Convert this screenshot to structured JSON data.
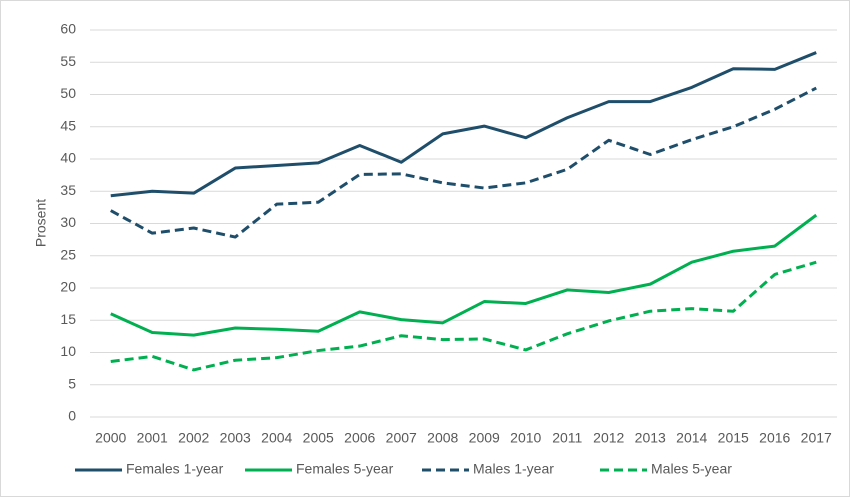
{
  "chart_data": {
    "type": "line",
    "y_label": "Prosent",
    "categories": [
      "2000",
      "2001",
      "2002",
      "2003",
      "2004",
      "2005",
      "2006",
      "2007",
      "2008",
      "2009",
      "2010",
      "2011",
      "2012",
      "2013",
      "2014",
      "2015",
      "2016",
      "2017"
    ],
    "series": [
      {
        "name": "Females 1-year",
        "color": "#1f4e6b",
        "line_style": "solid",
        "values": [
          34.3,
          35,
          34.7,
          38.6,
          39,
          39.4,
          42.1,
          39.5,
          43.9,
          45.1,
          43.3,
          46.4,
          48.9,
          48.9,
          51.1,
          54,
          53.9,
          56.5
        ]
      },
      {
        "name": "Females 5-year",
        "color": "#00b050",
        "line_style": "solid",
        "values": [
          16,
          13.1,
          12.7,
          13.8,
          13.6,
          13.3,
          16.3,
          15.1,
          14.6,
          17.9,
          17.6,
          19.7,
          19.3,
          20.6,
          24,
          25.7,
          26.5,
          31.3
        ]
      },
      {
        "name": "Males 1-year",
        "color": "#1f4e6b",
        "line_style": "dashed",
        "values": [
          32,
          28.5,
          29.3,
          27.9,
          33,
          33.3,
          37.6,
          37.7,
          36.3,
          35.5,
          36.3,
          38.4,
          42.9,
          40.7,
          43,
          45,
          47.7,
          51
        ]
      },
      {
        "name": "Males 5-year",
        "color": "#00b050",
        "line_style": "dashed",
        "values": [
          8.6,
          9.4,
          7.3,
          8.8,
          9.2,
          10.3,
          11,
          12.6,
          12,
          12.1,
          10.4,
          12.9,
          14.9,
          16.4,
          16.8,
          16.4,
          22.1,
          24
        ]
      }
    ],
    "ylim": [
      0,
      60
    ],
    "yticks": [
      0,
      5,
      10,
      15,
      20,
      25,
      30,
      35,
      40,
      45,
      50,
      55,
      60
    ],
    "grid": true,
    "legend": "bottom"
  }
}
